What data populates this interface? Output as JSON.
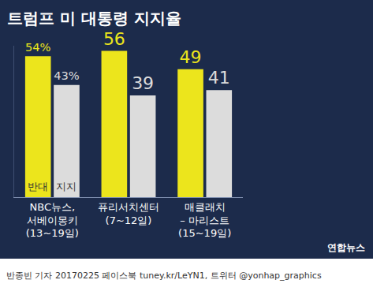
{
  "chart_data": {
    "type": "bar",
    "title": "트럼프 미 대통령 지지율",
    "categories": [
      "NBC뉴스,\n서베이몽키\n(13~19일)",
      "퓨리서치센터\n(7~12일)",
      "매클래치\n– 마리스트\n(15~19일)"
    ],
    "series": [
      {
        "name": "반대",
        "color": "#ece51c",
        "values": [
          54,
          56,
          49
        ],
        "value_labels": [
          "54%",
          "56",
          "49"
        ]
      },
      {
        "name": "지지",
        "color": "#dcdcdc",
        "values": [
          43,
          39,
          41
        ],
        "value_labels": [
          "43%",
          "39",
          "41"
        ]
      }
    ],
    "ylim": [
      0,
      58
    ],
    "grid": false,
    "data_labels": true,
    "tick_labels": "x",
    "source": "반종빈 기자 20170225 페이스북 tuney.kr/LeYN1, 트위터 @yonhap_graphics",
    "logo": "연합뉴스"
  }
}
